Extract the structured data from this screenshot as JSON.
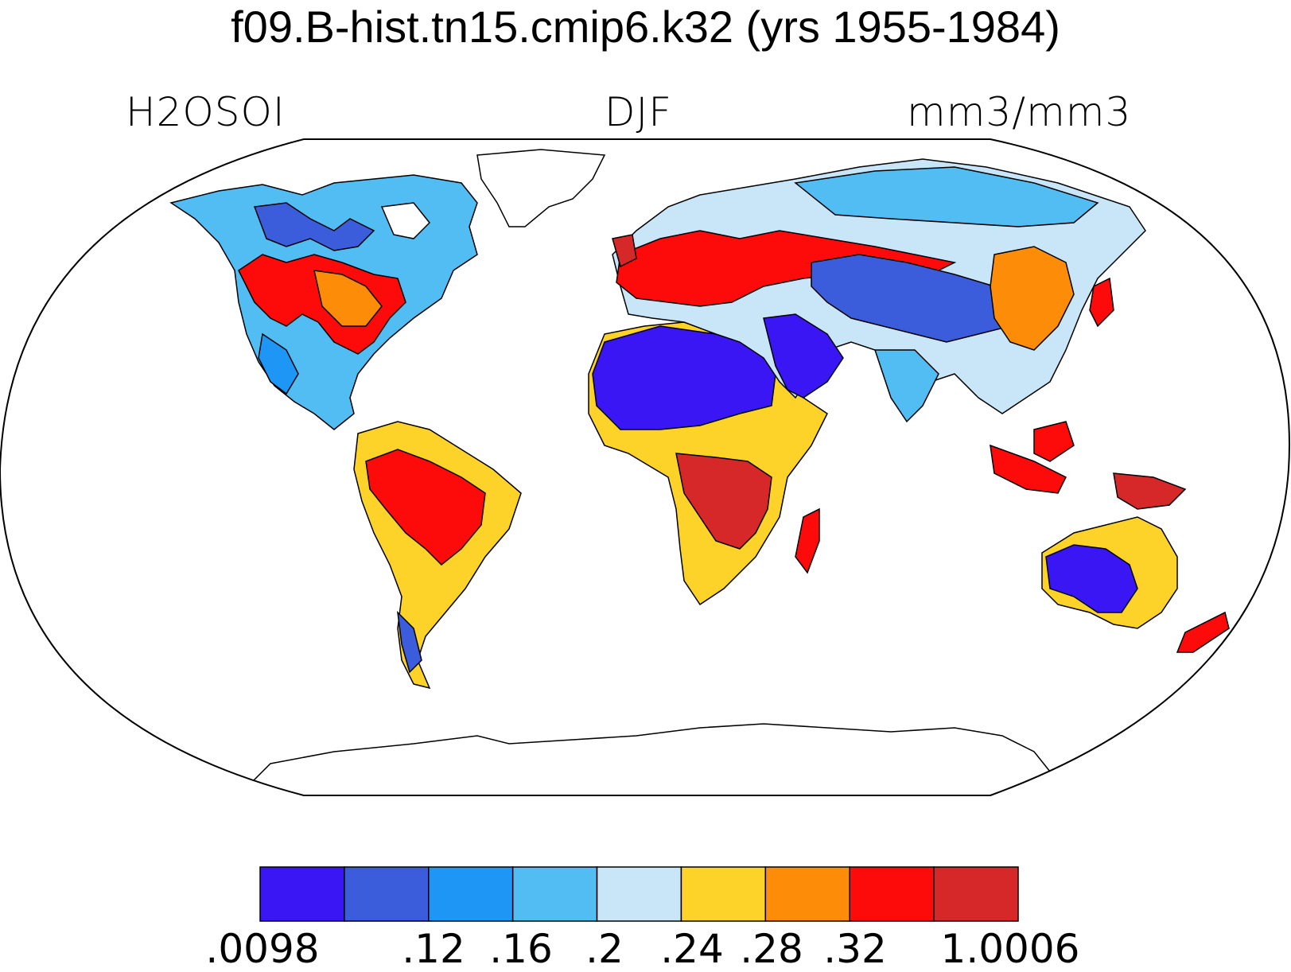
{
  "title": "f09.B-hist.tn15.cmip6.k32 (yrs 1955-1984)",
  "variable": "H2OSOI",
  "season": "DJF",
  "units": "mm3/mm3",
  "colorbar": {
    "colors": [
      "#3a16f5",
      "#3b5ddc",
      "#1e96f5",
      "#52bdf2",
      "#c8e6f8",
      "#fdd32a",
      "#fd8c08",
      "#fd0a0a",
      "#d62828"
    ],
    "tick_labels": [
      ".0098",
      ".12",
      ".16",
      ".2",
      ".24",
      ".28",
      ".32",
      "1.0006"
    ]
  },
  "map_colors": {
    "very_dry": "#3a16f5",
    "dry": "#3b5ddc",
    "mid_dry": "#1e96f5",
    "mid": "#52bdf2",
    "light": "#c8e6f8",
    "yellow": "#fdd32a",
    "orange": "#fd8c08",
    "red": "#fd0a0a",
    "dark_red": "#d62828",
    "ice": "#ffffff",
    "coastline": "#000000"
  }
}
